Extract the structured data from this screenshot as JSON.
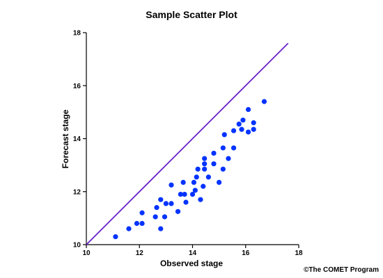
{
  "chart_data": {
    "type": "scatter",
    "title": "Sample Scatter Plot",
    "xlabel": "Observed stage",
    "ylabel": "Forecast stage",
    "xlim": [
      10,
      18
    ],
    "ylim": [
      10,
      18
    ],
    "xticks": [
      10,
      12,
      14,
      16,
      18
    ],
    "yticks": [
      10,
      12,
      14,
      16,
      18
    ],
    "grid": false,
    "point_color": "#0033ff",
    "reference_line": {
      "from": [
        10,
        10
      ],
      "to": [
        17.6,
        17.6
      ],
      "color": "#6a1fc7"
    },
    "series": [
      {
        "points": [
          [
            11.1,
            10.3
          ],
          [
            11.6,
            10.6
          ],
          [
            11.9,
            10.8
          ],
          [
            12.1,
            10.8
          ],
          [
            12.1,
            11.2
          ],
          [
            12.6,
            11.05
          ],
          [
            12.65,
            11.4
          ],
          [
            12.8,
            10.6
          ],
          [
            12.8,
            11.7
          ],
          [
            12.95,
            11.05
          ],
          [
            13.0,
            11.55
          ],
          [
            13.2,
            11.55
          ],
          [
            13.2,
            12.25
          ],
          [
            13.45,
            11.25
          ],
          [
            13.55,
            11.9
          ],
          [
            13.65,
            12.35
          ],
          [
            13.7,
            11.9
          ],
          [
            13.75,
            11.6
          ],
          [
            14.0,
            11.9
          ],
          [
            14.05,
            12.35
          ],
          [
            14.1,
            12.05
          ],
          [
            14.15,
            12.55
          ],
          [
            14.2,
            12.85
          ],
          [
            14.3,
            11.7
          ],
          [
            14.4,
            12.2
          ],
          [
            14.45,
            12.85
          ],
          [
            14.45,
            13.05
          ],
          [
            14.45,
            13.25
          ],
          [
            14.6,
            12.55
          ],
          [
            14.8,
            13.05
          ],
          [
            14.8,
            13.45
          ],
          [
            15.0,
            12.35
          ],
          [
            15.15,
            12.85
          ],
          [
            15.15,
            13.65
          ],
          [
            15.2,
            14.15
          ],
          [
            15.35,
            13.25
          ],
          [
            15.55,
            13.65
          ],
          [
            15.55,
            14.3
          ],
          [
            15.75,
            14.55
          ],
          [
            15.85,
            14.35
          ],
          [
            15.9,
            14.7
          ],
          [
            16.1,
            15.1
          ],
          [
            16.1,
            14.25
          ],
          [
            16.3,
            14.35
          ],
          [
            16.3,
            14.6
          ],
          [
            16.7,
            15.4
          ]
        ]
      }
    ]
  },
  "credit": "©The COMET Program"
}
